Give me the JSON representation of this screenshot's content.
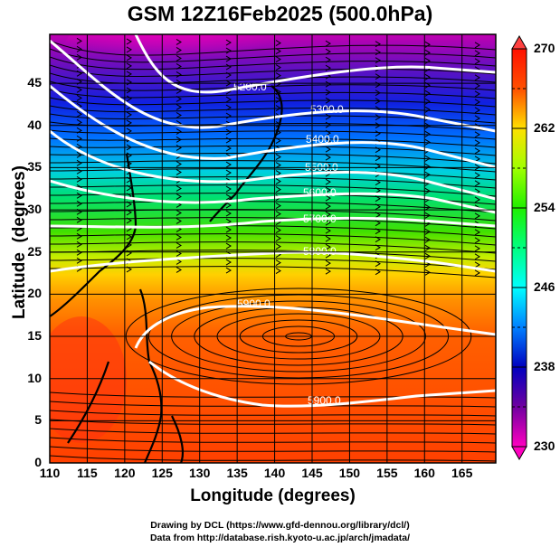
{
  "title": "GSM 12Z16Feb2025 (500.0hPa)",
  "axes": {
    "xlabel": "Longitude (degrees)",
    "ylabel": "Latitude  (degrees)",
    "xticks": [
      "110",
      "115",
      "120",
      "125",
      "130",
      "135",
      "140",
      "145",
      "150",
      "155",
      "160",
      "165"
    ],
    "yticks": [
      "0",
      "5",
      "10",
      "15",
      "20",
      "25",
      "30",
      "35",
      "40",
      "45"
    ],
    "xlim": [
      110,
      169.5
    ],
    "ylim": [
      0,
      50.8
    ]
  },
  "colorbar": {
    "ticks": [
      "270",
      "262",
      "254",
      "246",
      "238",
      "230"
    ],
    "range": [
      230,
      270
    ],
    "colors": [
      "#ff00cc",
      "#8000a0",
      "#0000c0",
      "#0040ff",
      "#00c0ff",
      "#00ffc0",
      "#00ff40",
      "#40e000",
      "#c0ff00",
      "#ffe000",
      "#ff9000",
      "#ff4000",
      "#ff1000"
    ]
  },
  "contours": [
    {
      "label": "5200.0"
    },
    {
      "label": "5300.0"
    },
    {
      "label": "5400.0"
    },
    {
      "label": "5500.0"
    },
    {
      "label": "5600.0"
    },
    {
      "label": "5700.0"
    },
    {
      "label": "5800.0"
    },
    {
      "label": "5900.0"
    },
    {
      "label": "5900.0"
    }
  ],
  "credits": {
    "line1": "Drawing by DCL (https://www.gfd-dennou.org/library/dcl/)",
    "line2": "Data from http://database.rish.kyoto-u.ac.jp/arch/jmadata/"
  },
  "chart_data": {
    "type": "heatmap",
    "title": "GSM 12Z16Feb2025 (500.0hPa)",
    "xlabel": "Longitude (degrees)",
    "ylabel": "Latitude  (degrees)",
    "xlim": [
      110,
      169.5
    ],
    "ylim": [
      0,
      50.8
    ],
    "colorbar_range": [
      230,
      270
    ],
    "colorbar_ticks": [
      230,
      238,
      246,
      254,
      262,
      270
    ],
    "grid": true,
    "contour_levels": [
      5200,
      5300,
      5400,
      5500,
      5600,
      5700,
      5800,
      5900
    ]
  }
}
